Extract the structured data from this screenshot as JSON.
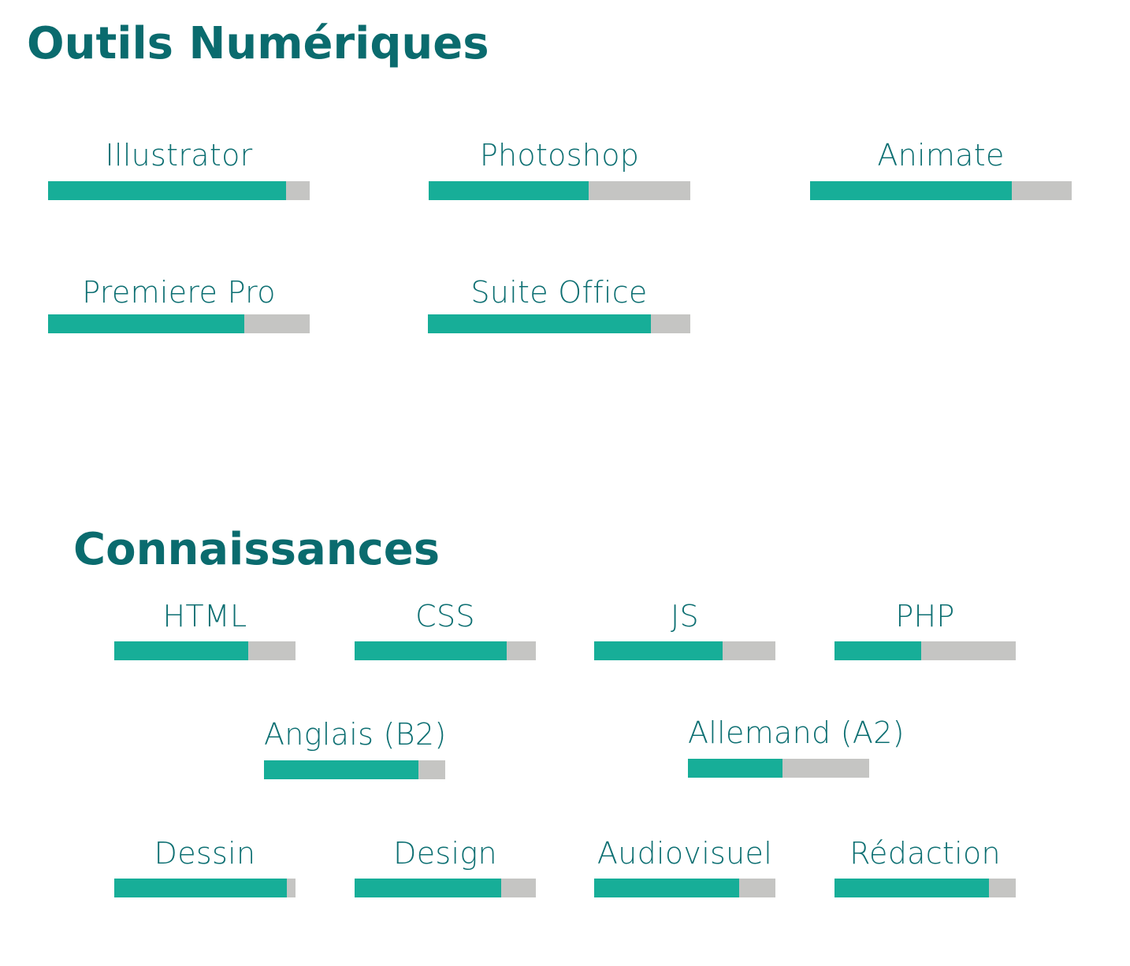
{
  "sections": [
    {
      "title": "Outils Numériques",
      "skills": [
        {
          "label": "Illustrator",
          "level": 0.91
        },
        {
          "label": "Photoshop",
          "level": 0.61
        },
        {
          "label": "Animate",
          "level": 0.77
        },
        {
          "label": "Premiere Pro",
          "level": 0.75
        },
        {
          "label": "Suite Office",
          "level": 0.85
        }
      ]
    },
    {
      "title": "Connaissances",
      "skills": [
        {
          "label": "HTML",
          "level": 0.74
        },
        {
          "label": "CSS",
          "level": 0.84
        },
        {
          "label": "JS",
          "level": 0.71
        },
        {
          "label": "PHP",
          "level": 0.48
        },
        {
          "label": "Anglais (B2)",
          "level": 0.85
        },
        {
          "label": "Allemand (A2)",
          "level": 0.52
        },
        {
          "label": "Dessin",
          "level": 0.95
        },
        {
          "label": "Design",
          "level": 0.81
        },
        {
          "label": "Audiovisuel",
          "level": 0.8
        },
        {
          "label": "Rédaction",
          "level": 0.85
        }
      ]
    }
  ],
  "colors": {
    "title": "#0a6b6e",
    "label": "#0d6f72",
    "fill": "#17ae98",
    "track": "#c5c5c3"
  }
}
